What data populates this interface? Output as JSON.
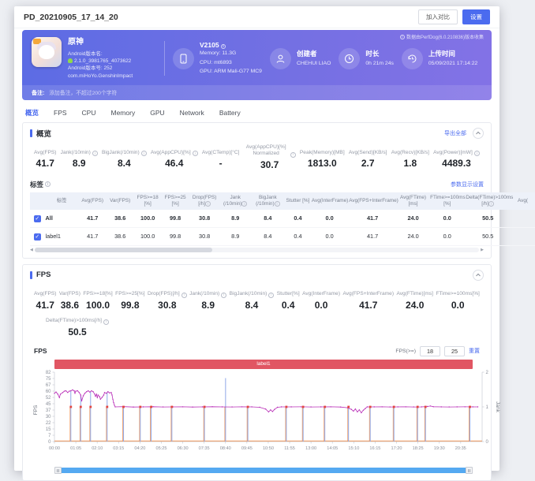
{
  "page": {
    "title": "PD_20210905_17_14_20",
    "compare_button": "加入对比",
    "settings_button": "设置"
  },
  "header": {
    "app_name": "原神",
    "app_version_label": "Android版本名:",
    "app_version": "2.1.0_3981765_4073622",
    "app_build": "Android版本号: 252",
    "app_package": "com.miHoYo.GenshinImpact",
    "device": {
      "model": "V2105",
      "memory": "Memory: 11.3G",
      "cpu": "CPU: mt6893",
      "gpu": "GPU: ARM Mali-G77 MC9"
    },
    "creator": {
      "label": "创建者",
      "value": "CHEHUI LIAO"
    },
    "duration": {
      "label": "时长",
      "value": "0h 21m 24s"
    },
    "upload": {
      "label": "上传时间",
      "value": "05/09/2021 17:14:22"
    },
    "collect_note": "数据由PerfDog(6.0.210836)版本收集",
    "remark_label": "备注:",
    "remark_placeholder": "添加备注，不超过200个字符"
  },
  "tabs": [
    {
      "label": "概览",
      "active": true
    },
    {
      "label": "FPS",
      "active": false
    },
    {
      "label": "CPU",
      "active": false
    },
    {
      "label": "Memory",
      "active": false
    },
    {
      "label": "GPU",
      "active": false
    },
    {
      "label": "Network",
      "active": false
    },
    {
      "label": "Battery",
      "active": false
    }
  ],
  "overview": {
    "title": "概览",
    "export_all": "导出全部",
    "metrics": [
      {
        "label": "Avg(FPS)",
        "info": false,
        "value": "41.7"
      },
      {
        "label": "Jank(/10min)",
        "info": true,
        "value": "8.9"
      },
      {
        "label": "BigJank(/10min)",
        "info": true,
        "value": "8.4"
      },
      {
        "label": "Avg(AppCPU)[%]",
        "info": true,
        "value": "46.4"
      },
      {
        "label": "Avg(CTemp)[°C]",
        "info": false,
        "value": "-"
      },
      {
        "label": "Avg(AppCPU)[%] Normalized",
        "info": true,
        "value": "30.7"
      },
      {
        "label": "Peak(Memory)[MB]",
        "info": false,
        "value": "1813.0"
      },
      {
        "label": "Avg(Send)[KB/s]",
        "info": false,
        "value": "2.7"
      },
      {
        "label": "Avg(Recv)[KB/s]",
        "info": false,
        "value": "1.8"
      },
      {
        "label": "Avg(Power)[mW]",
        "info": true,
        "value": "4489.3"
      }
    ],
    "labels_section": {
      "title": "标签",
      "settings_link": "参数显示设置",
      "columns": [
        {
          "label": "标签",
          "info": false
        },
        {
          "label": "Avg(FPS)",
          "info": false
        },
        {
          "label": "Var(FPS)",
          "info": false
        },
        {
          "label": "FPS>=18 [%]",
          "info": false
        },
        {
          "label": "FPS>=25 [%]",
          "info": false
        },
        {
          "label": "Drop(FPS) [/h]",
          "info": true
        },
        {
          "label": "Jank (/10min)",
          "info": true
        },
        {
          "label": "BigJank (/10min)",
          "info": true
        },
        {
          "label": "Stutter [%]",
          "info": false
        },
        {
          "label": "Avg(InterFrame)",
          "info": false
        },
        {
          "label": "Avg(FPS+InterFrame)",
          "info": false
        },
        {
          "label": "Avg(FTime) [ms]",
          "info": false
        },
        {
          "label": "FTime>=100ms [%]",
          "info": false
        },
        {
          "label": "Delta(FTime)>100ms [/h]",
          "info": true
        },
        {
          "label": "Avg(",
          "info": false
        }
      ],
      "rows": [
        {
          "name": "All",
          "bold": true,
          "checked": true,
          "values": [
            "41.7",
            "38.6",
            "100.0",
            "99.8",
            "30.8",
            "8.9",
            "8.4",
            "0.4",
            "0.0",
            "41.7",
            "24.0",
            "0.0",
            "50.5",
            ""
          ]
        },
        {
          "name": "label1",
          "bold": false,
          "checked": true,
          "values": [
            "41.7",
            "38.6",
            "100.0",
            "99.8",
            "30.8",
            "8.9",
            "8.4",
            "0.4",
            "0.0",
            "41.7",
            "24.0",
            "0.0",
            "50.5",
            ""
          ]
        }
      ]
    }
  },
  "fps_section": {
    "title": "FPS",
    "metrics": [
      {
        "label": "Avg(FPS)",
        "info": false,
        "value": "41.7"
      },
      {
        "label": "Var(FPS)",
        "info": false,
        "value": "38.6"
      },
      {
        "label": "FPS>=18[%]",
        "info": false,
        "value": "100.0"
      },
      {
        "label": "FPS>=25[%]",
        "info": false,
        "value": "99.8"
      },
      {
        "label": "Drop(FPS)[/h]",
        "info": true,
        "value": "30.8"
      },
      {
        "label": "Jank(/10min)",
        "info": true,
        "value": "8.9"
      },
      {
        "label": "BigJank(/10min)",
        "info": true,
        "value": "8.4"
      },
      {
        "label": "Stutter[%]",
        "info": false,
        "value": "0.4"
      },
      {
        "label": "Avg(InterFrame)",
        "info": false,
        "value": "0.0"
      },
      {
        "label": "Avg(FPS+InterFrame)",
        "info": false,
        "value": "41.7"
      },
      {
        "label": "Avg(FTime)[ms]",
        "info": false,
        "value": "24.0"
      },
      {
        "label": "FTime>=100ms[%]",
        "info": false,
        "value": "0.0"
      },
      {
        "label": "Delta(FTime)>100ms[/h]",
        "info": true,
        "value": "50.5"
      }
    ],
    "chart_controls": {
      "label": "FPS(>=)",
      "threshold1": "18",
      "threshold2": "25",
      "reset_link": "重置"
    },
    "label_band": "label1"
  },
  "chart_data": {
    "type": "line",
    "title": "FPS",
    "ylabel": "FPS",
    "y2label": "Jank",
    "ylim": [
      0,
      82
    ],
    "y2lim": [
      0,
      2
    ],
    "yticks": [
      0,
      7,
      15,
      22,
      30,
      37,
      45,
      52,
      60,
      67,
      75,
      82
    ],
    "y2ticks": [
      0,
      1,
      2
    ],
    "xticks": [
      "00:00",
      "01:05",
      "02:10",
      "03:15",
      "04:20",
      "05:25",
      "06:30",
      "07:35",
      "08:40",
      "09:45",
      "10:50",
      "11:55",
      "13:00",
      "14:05",
      "15:10",
      "16:15",
      "17:20",
      "18:25",
      "19:30",
      "20:35"
    ],
    "xtick_interval_min": 1.0833,
    "x_minutes_max": 21.67,
    "grid": false,
    "legend": "label band top",
    "series": [
      {
        "name": "FPS",
        "color": "#b92fb8",
        "points": [
          [
            0.0,
            57
          ],
          [
            0.08,
            58.5
          ],
          [
            0.17,
            56
          ],
          [
            0.25,
            52
          ],
          [
            0.3,
            56
          ],
          [
            0.42,
            58
          ],
          [
            0.5,
            59.5
          ],
          [
            0.58,
            60
          ],
          [
            0.67,
            58
          ],
          [
            0.75,
            59.5
          ],
          [
            0.83,
            60
          ],
          [
            0.92,
            61
          ],
          [
            1.0,
            60
          ],
          [
            1.04,
            57
          ],
          [
            1.08,
            59.5
          ],
          [
            1.17,
            60
          ],
          [
            1.25,
            58
          ],
          [
            1.33,
            55
          ],
          [
            1.38,
            48
          ],
          [
            1.46,
            54
          ],
          [
            1.54,
            57
          ],
          [
            1.63,
            59
          ],
          [
            1.71,
            60
          ],
          [
            1.79,
            58.5
          ],
          [
            1.88,
            60
          ],
          [
            1.96,
            59
          ],
          [
            2.04,
            56
          ],
          [
            2.08,
            53.5
          ],
          [
            2.13,
            56
          ],
          [
            2.17,
            52
          ],
          [
            2.21,
            55
          ],
          [
            2.29,
            53
          ],
          [
            2.33,
            50
          ],
          [
            2.42,
            52.5
          ],
          [
            2.5,
            55
          ],
          [
            2.54,
            58
          ],
          [
            2.63,
            57
          ],
          [
            2.71,
            59
          ],
          [
            2.79,
            57.5
          ],
          [
            2.88,
            58
          ],
          [
            2.92,
            55
          ],
          [
            2.96,
            50
          ],
          [
            3.0,
            46
          ],
          [
            3.04,
            43
          ],
          [
            3.08,
            41
          ],
          [
            3.5,
            41.3
          ],
          [
            4.0,
            40.8
          ],
          [
            4.5,
            41
          ],
          [
            5.0,
            41.2
          ],
          [
            5.5,
            40.9
          ],
          [
            6.0,
            41
          ],
          [
            6.5,
            41.1
          ],
          [
            7.0,
            40.8
          ],
          [
            7.5,
            41
          ],
          [
            8.0,
            41.2
          ],
          [
            8.5,
            41
          ],
          [
            9.0,
            40.9
          ],
          [
            9.5,
            41.1
          ],
          [
            10.0,
            41
          ],
          [
            10.4,
            40.5
          ],
          [
            10.7,
            38.5
          ],
          [
            10.85,
            35
          ],
          [
            10.95,
            37.5
          ],
          [
            11.05,
            35.5
          ],
          [
            11.15,
            38
          ],
          [
            11.3,
            40.5
          ],
          [
            11.5,
            41
          ],
          [
            12.0,
            41
          ],
          [
            12.5,
            41.1
          ],
          [
            13.0,
            40.9
          ],
          [
            13.5,
            41
          ],
          [
            14.0,
            41.1
          ],
          [
            14.5,
            40.8
          ],
          [
            14.85,
            40
          ],
          [
            15.05,
            38
          ],
          [
            15.15,
            36
          ],
          [
            15.25,
            38.5
          ],
          [
            15.35,
            35
          ],
          [
            15.45,
            37.5
          ],
          [
            15.55,
            34
          ],
          [
            15.65,
            37
          ],
          [
            15.75,
            39
          ],
          [
            15.85,
            41
          ],
          [
            16.2,
            41
          ],
          [
            16.6,
            41.1
          ],
          [
            17.0,
            40.9
          ],
          [
            17.4,
            41
          ],
          [
            17.8,
            41.1
          ],
          [
            18.2,
            40.9
          ],
          [
            18.6,
            41
          ],
          [
            18.9,
            41.5
          ],
          [
            19.05,
            42
          ],
          [
            19.2,
            41.2
          ],
          [
            19.6,
            41
          ],
          [
            20.0,
            40.9
          ],
          [
            20.4,
            41
          ],
          [
            20.8,
            41.1
          ],
          [
            21.2,
            41
          ],
          [
            21.45,
            41
          ]
        ]
      }
    ],
    "jank_spikes": {
      "color_blue": "#8fa8e8",
      "color_orange": "#f0975c",
      "times": [
        0.83,
        1.33,
        1.83,
        2.67,
        3.5,
        4.35,
        4.9,
        5.95,
        7.6,
        8.67,
        9.8,
        11.75,
        12.6,
        13.7,
        14.9,
        16.0,
        17.2,
        18.4,
        18.8,
        21.05
      ],
      "tall_spike": {
        "time": 8.67,
        "value": 75
      }
    },
    "drop_markers": {
      "color": "#e3453f",
      "value": 41,
      "times": [
        0.83,
        1.33,
        1.83,
        2.67,
        3.5,
        4.35,
        4.9,
        5.95,
        7.6,
        9.8,
        11.75,
        12.6,
        13.7,
        14.9,
        16.0,
        17.2,
        18.4,
        18.8,
        21.05
      ]
    },
    "zero_line_color": "#f0975c"
  }
}
